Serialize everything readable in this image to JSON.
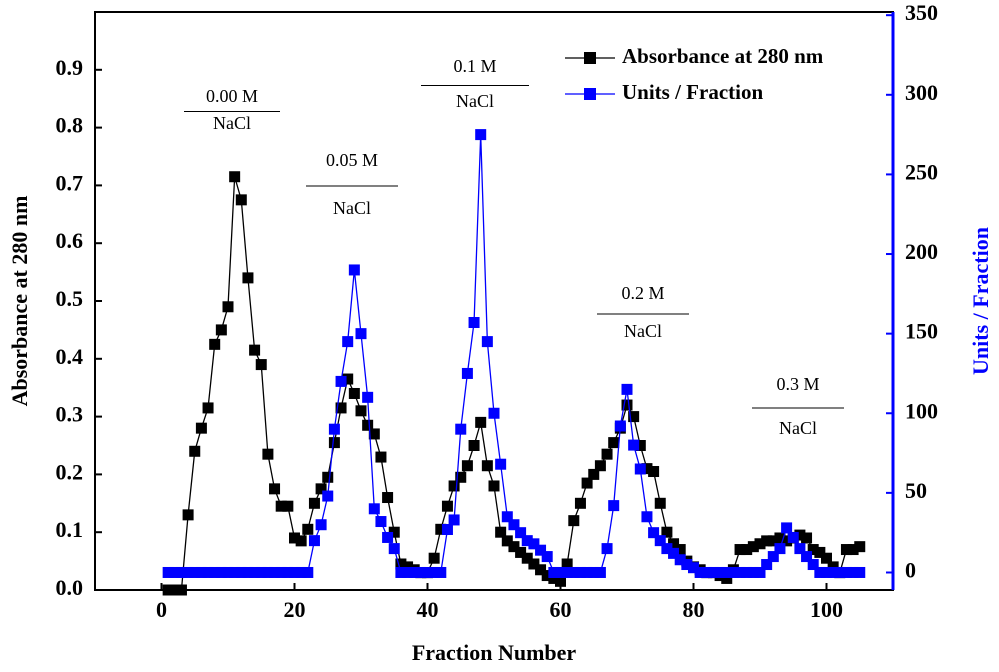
{
  "chart_data": {
    "type": "line",
    "x_label": "Fraction Number",
    "y_label": "Absorbance at 280 nm",
    "y2_label": "Units / Fraction",
    "xlim": [
      -10,
      110
    ],
    "xticks": [
      0,
      20,
      40,
      60,
      80,
      100
    ],
    "ylim": [
      0,
      1.0
    ],
    "yticks": [
      {
        "value": 0,
        "label": "0.0"
      },
      0.1,
      0.2,
      0.3,
      0.4,
      0.5,
      0.6,
      0.7,
      0.8,
      0.9
    ],
    "y2lim": [
      -11,
      352
    ],
    "y2ticks": [
      0,
      50,
      100,
      150,
      200,
      250,
      300,
      350
    ],
    "legend": "upper right",
    "marker": "square",
    "x": [
      1,
      2,
      3,
      4,
      5,
      6,
      7,
      8,
      9,
      10,
      11,
      12,
      13,
      14,
      15,
      16,
      17,
      18,
      19,
      20,
      21,
      22,
      23,
      24,
      25,
      26,
      27,
      28,
      29,
      30,
      31,
      32,
      33,
      34,
      35,
      36,
      37,
      38,
      39,
      40,
      41,
      42,
      43,
      44,
      45,
      46,
      47,
      48,
      49,
      50,
      51,
      52,
      53,
      54,
      55,
      56,
      57,
      58,
      59,
      60,
      61,
      62,
      63,
      64,
      65,
      66,
      67,
      68,
      69,
      70,
      71,
      72,
      73,
      74,
      75,
      76,
      77,
      78,
      79,
      80,
      81,
      82,
      83,
      84,
      85,
      86,
      87,
      88,
      89,
      90,
      91,
      92,
      93,
      94,
      95,
      96,
      97,
      98,
      99,
      100,
      101,
      102,
      103,
      104,
      105
    ],
    "series": [
      {
        "name": "Absorbance at 280 nm",
        "color": "#000000",
        "axis": "y",
        "values": [
          0,
          0,
          0,
          0.13,
          0.24,
          0.28,
          0.315,
          0.425,
          0.45,
          0.49,
          0.715,
          0.675,
          0.54,
          0.415,
          0.39,
          0.235,
          0.175,
          0.145,
          0.145,
          0.09,
          0.085,
          0.105,
          0.15,
          0.175,
          0.195,
          0.255,
          0.315,
          0.365,
          0.34,
          0.31,
          0.285,
          0.27,
          0.23,
          0.16,
          0.1,
          0.045,
          0.04,
          0.035,
          0.03,
          0.03,
          0.055,
          0.105,
          0.145,
          0.18,
          0.195,
          0.215,
          0.25,
          0.29,
          0.215,
          0.18,
          0.1,
          0.085,
          0.075,
          0.065,
          0.055,
          0.045,
          0.035,
          0.025,
          0.02,
          0.015,
          0.045,
          0.12,
          0.15,
          0.185,
          0.2,
          0.215,
          0.235,
          0.255,
          0.28,
          0.32,
          0.3,
          0.25,
          0.21,
          0.205,
          0.15,
          0.1,
          0.08,
          0.07,
          0.05,
          0.04,
          0.035,
          0.03,
          0.03,
          0.025,
          0.02,
          0.035,
          0.07,
          0.07,
          0.075,
          0.08,
          0.085,
          0.085,
          0.09,
          0.085,
          0.09,
          0.095,
          0.09,
          0.07,
          0.065,
          0.055,
          0.04,
          0.03,
          0.07,
          0.07,
          0.075
        ]
      },
      {
        "name": "Units / Fraction",
        "color": "#0000ff",
        "axis": "y2",
        "values": [
          0,
          0,
          0,
          0,
          0,
          0,
          0,
          0,
          0,
          0,
          0,
          0,
          0,
          0,
          0,
          0,
          0,
          0,
          0,
          0,
          0,
          0,
          20,
          30,
          48,
          90,
          120,
          145,
          190,
          150,
          110,
          40,
          32,
          22,
          15,
          0,
          0,
          0,
          0,
          0,
          0,
          0,
          27,
          33,
          90,
          125,
          157,
          275,
          145,
          100,
          68,
          35,
          30,
          25,
          20,
          18,
          14,
          10,
          0,
          0,
          0,
          0,
          0,
          0,
          0,
          0,
          15,
          42,
          92,
          115,
          80,
          65,
          35,
          25,
          20,
          15,
          12,
          8,
          5,
          3,
          0,
          0,
          0,
          0,
          0,
          0,
          0,
          0,
          0,
          0,
          5,
          10,
          15,
          28,
          22,
          15,
          10,
          5,
          0,
          0,
          0,
          0,
          0,
          0,
          0
        ]
      }
    ],
    "annotations": [
      {
        "top": "0.00 M",
        "bottom": "NaCl"
      },
      {
        "top": "0.05 M",
        "bottom": "NaCl"
      },
      {
        "top": "0.1 M",
        "bottom": "NaCl"
      },
      {
        "top": "0.2 M",
        "bottom": "NaCl"
      },
      {
        "top": "0.3 M",
        "bottom": "NaCl"
      }
    ]
  }
}
